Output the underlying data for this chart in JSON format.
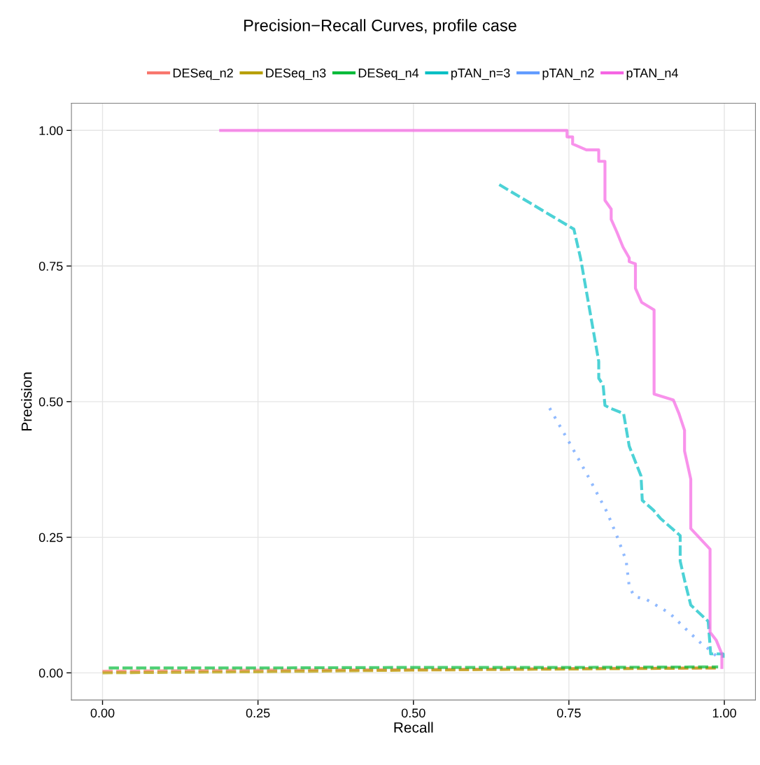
{
  "chart_data": {
    "type": "line",
    "title": "Precision−Recall Curves, profile case",
    "xlabel": "Recall",
    "ylabel": "Precision",
    "xlim": [
      -0.05,
      1.05
    ],
    "ylim": [
      -0.05,
      1.05
    ],
    "xticks": [
      {
        "value": 0,
        "label": "0.00"
      },
      {
        "value": 0.25,
        "label": "0.25"
      },
      {
        "value": 0.5,
        "label": "0.50"
      },
      {
        "value": 0.75,
        "label": "0.75"
      },
      {
        "value": 1,
        "label": "1.00"
      }
    ],
    "yticks": [
      {
        "value": 0,
        "label": "0.00"
      },
      {
        "value": 0.25,
        "label": "0.25"
      },
      {
        "value": 0.5,
        "label": "0.50"
      },
      {
        "value": 0.75,
        "label": "0.75"
      },
      {
        "value": 1,
        "label": "1.00"
      }
    ],
    "grid": true,
    "legend": "top",
    "marker": "none",
    "series": [
      {
        "name": "DESeq_n2",
        "color": "#f8766d",
        "line_style": "dashed",
        "x": [
          0.0,
          0.25,
          0.5,
          0.75,
          0.99
        ],
        "values": [
          0.003,
          0.005,
          0.006,
          0.008,
          0.009
        ]
      },
      {
        "name": "DESeq_n3",
        "color": "#b79f00",
        "line_style": "dashed",
        "x": [
          0.0,
          0.25,
          0.5,
          0.75,
          0.99
        ],
        "values": [
          0.0,
          0.002,
          0.005,
          0.007,
          0.009
        ]
      },
      {
        "name": "DESeq_n4",
        "color": "#00ba38",
        "line_style": "dashed",
        "x": [
          0.01,
          0.25,
          0.5,
          0.75,
          0.99
        ],
        "values": [
          0.009,
          0.009,
          0.01,
          0.01,
          0.011
        ]
      },
      {
        "name": "pTAN_n=3",
        "color": "#00bfc4",
        "line_style": "dashed",
        "x": [
          0.638,
          0.758,
          0.769,
          0.798,
          0.798,
          0.805,
          0.808,
          0.816,
          0.838,
          0.847,
          0.866,
          0.868,
          0.886,
          0.897,
          0.929,
          0.929,
          0.937,
          0.946,
          0.974,
          0.978,
          0.998,
          0.998
        ],
        "values": [
          0.9,
          0.818,
          0.763,
          0.574,
          0.543,
          0.531,
          0.493,
          0.488,
          0.478,
          0.418,
          0.363,
          0.318,
          0.3,
          0.285,
          0.253,
          0.206,
          0.166,
          0.125,
          0.095,
          0.035,
          0.035,
          0.022
        ]
      },
      {
        "name": "pTAN_n2",
        "color": "#619cff",
        "line_style": "dotted",
        "x": [
          0.719,
          0.751,
          0.781,
          0.811,
          0.827,
          0.842,
          0.847,
          0.855,
          0.875,
          0.912,
          0.937,
          0.963,
          0.978,
          0.987
        ],
        "values": [
          0.488,
          0.424,
          0.362,
          0.297,
          0.253,
          0.207,
          0.16,
          0.141,
          0.135,
          0.11,
          0.082,
          0.054,
          0.041,
          0.031
        ]
      },
      {
        "name": "pTAN_n4",
        "color": "#f564e3",
        "line_style": "solid",
        "x": [
          0.19,
          0.747,
          0.747,
          0.756,
          0.756,
          0.778,
          0.798,
          0.798,
          0.808,
          0.808,
          0.818,
          0.818,
          0.827,
          0.837,
          0.847,
          0.847,
          0.857,
          0.857,
          0.867,
          0.887,
          0.887,
          0.918,
          0.927,
          0.936,
          0.936,
          0.946,
          0.946,
          0.977,
          0.977,
          0.987,
          0.996,
          0.996
        ],
        "values": [
          1.0,
          1.0,
          0.988,
          0.988,
          0.975,
          0.964,
          0.964,
          0.943,
          0.943,
          0.871,
          0.855,
          0.836,
          0.813,
          0.785,
          0.765,
          0.758,
          0.754,
          0.709,
          0.683,
          0.669,
          0.514,
          0.503,
          0.478,
          0.447,
          0.409,
          0.357,
          0.266,
          0.228,
          0.075,
          0.06,
          0.035,
          0.01
        ]
      }
    ]
  }
}
